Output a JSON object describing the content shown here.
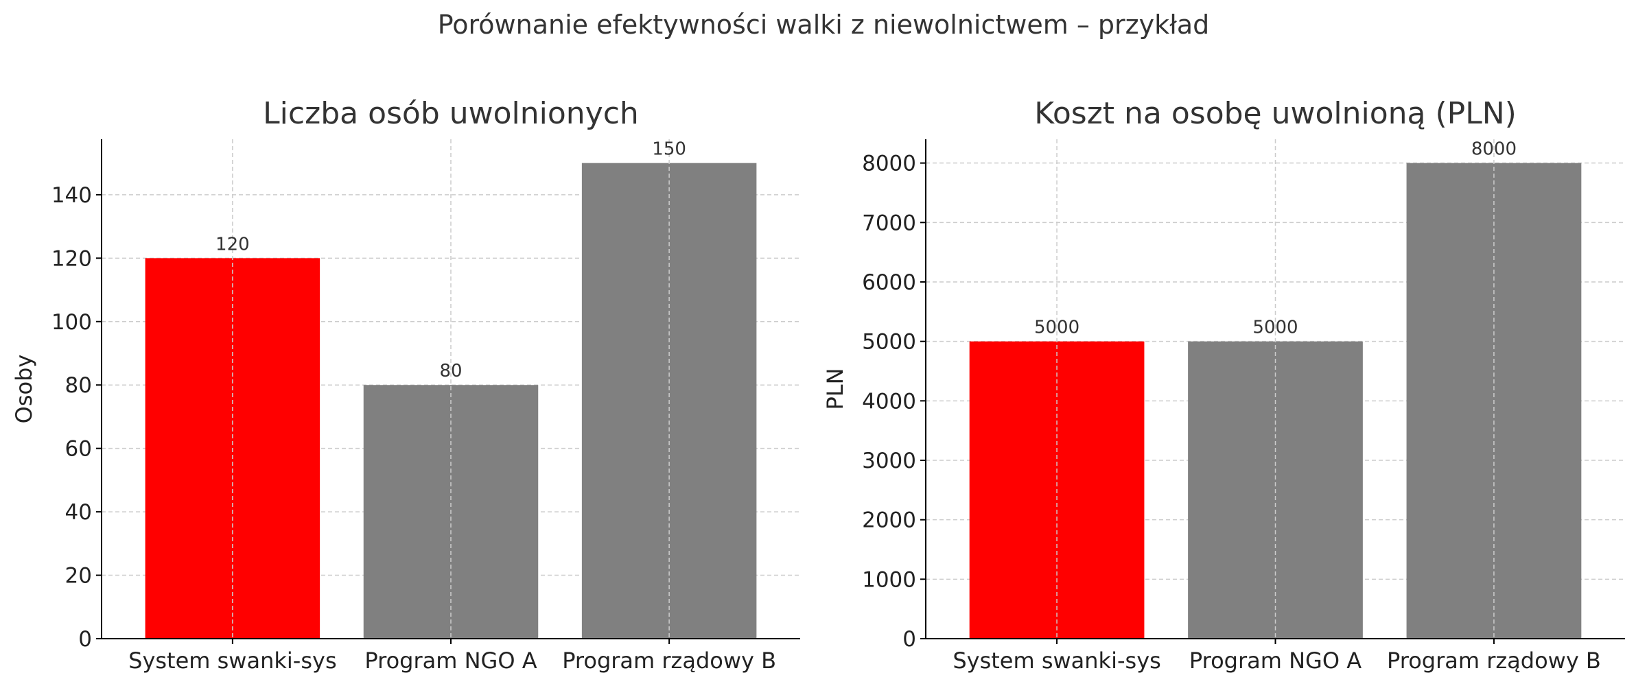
{
  "figure": {
    "suptitle": "Porównanie efektywności walki z niewolnictwem – przykład"
  },
  "colors": {
    "highlight": "#ff0000",
    "other": "#808080",
    "grid": "#cccccc",
    "axis": "#000000"
  },
  "chart_data": [
    {
      "type": "bar",
      "title": "Liczba osób uwolnionych",
      "xlabel": "",
      "ylabel": "Osoby",
      "categories": [
        "System swanki-sys",
        "Program NGO A",
        "Program rządowy B"
      ],
      "values": [
        120,
        80,
        150
      ],
      "data_labels": [
        "120",
        "80",
        "150"
      ],
      "ylim": [
        0,
        157.5
      ],
      "yticks": [
        0,
        20,
        40,
        60,
        80,
        100,
        120,
        140
      ],
      "grid": true,
      "bar_colors": [
        "#ff0000",
        "#808080",
        "#808080"
      ]
    },
    {
      "type": "bar",
      "title": "Koszt na osobę uwolnioną (PLN)",
      "xlabel": "",
      "ylabel": "PLN",
      "categories": [
        "System swanki-sys",
        "Program NGO A",
        "Program rządowy B"
      ],
      "values": [
        5000,
        5000,
        8000
      ],
      "data_labels": [
        "5000",
        "5000",
        "8000"
      ],
      "ylim": [
        0,
        8400
      ],
      "yticks": [
        0,
        1000,
        2000,
        3000,
        4000,
        5000,
        6000,
        7000,
        8000
      ],
      "grid": true,
      "bar_colors": [
        "#ff0000",
        "#808080",
        "#808080"
      ]
    }
  ]
}
